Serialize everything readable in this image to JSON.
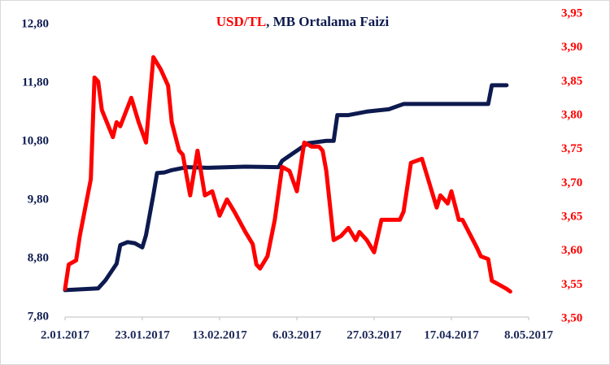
{
  "chart_data": {
    "type": "line",
    "title": [
      "USD/TL",
      ", MB Ortalama Faizi"
    ],
    "title_colors": [
      "#ff0000",
      "#0d1a4f"
    ],
    "xlim": [
      "2.01.2017",
      "8.05.2017"
    ],
    "xticks": [
      "2.01.2017",
      "23.01.2017",
      "13.02.2017",
      "6.03.2017",
      "27.03.2017",
      "17.04.2017",
      "8.05.2017"
    ],
    "ylim": [
      7.8,
      12.8
    ],
    "yticks": [
      {
        "value": 7.8,
        "label": "7,80"
      },
      {
        "value": 8.8,
        "label": "8,80"
      },
      {
        "value": 9.8,
        "label": "9,80"
      },
      {
        "value": 10.8,
        "label": "10,80"
      },
      {
        "value": 11.8,
        "label": "11,80"
      },
      {
        "value": 12.8,
        "label": "12,80"
      }
    ],
    "y2lim": [
      3.5,
      3.95
    ],
    "y2ticks": [
      {
        "value": 3.5,
        "label": "3,50"
      },
      {
        "value": 3.55,
        "label": "3,55"
      },
      {
        "value": 3.6,
        "label": "3,60"
      },
      {
        "value": 3.65,
        "label": "3,65"
      },
      {
        "value": 3.7,
        "label": "3,70"
      },
      {
        "value": 3.75,
        "label": "3,75"
      },
      {
        "value": 3.8,
        "label": "3,80"
      },
      {
        "value": 3.85,
        "label": "3,85"
      },
      {
        "value": 3.9,
        "label": "3,90"
      },
      {
        "value": 3.95,
        "label": "3,95"
      }
    ],
    "grid": false,
    "series": [
      {
        "name": "MB Ortalama Faizi",
        "color": "#0d1a4f",
        "axis": "y",
        "x": [
          "2.01.2017",
          "11.01.2017",
          "13.01.2017",
          "16.01.2017",
          "17.01.2017",
          "19.01.2017",
          "21.01.2017",
          "23.01.2017",
          "24.01.2017",
          "26.01.2017",
          "27.01.2017",
          "29.01.2017",
          "31.01.2017",
          "4.02.2017",
          "10.02.2017",
          "20.02.2017",
          "1.03.2017",
          "2.03.2017",
          "5.03.2017",
          "9.03.2017",
          "14.03.2017",
          "16.03.2017",
          "17.03.2017",
          "20.03.2017",
          "25.03.2017",
          "31.03.2017",
          "4.04.2017",
          "18.04.2017",
          "27.04.2017",
          "28.04.2017",
          "2.05.2017"
        ],
        "values": [
          8.26,
          8.29,
          8.43,
          8.71,
          9.03,
          9.08,
          9.06,
          8.99,
          9.2,
          9.89,
          10.26,
          10.27,
          10.31,
          10.36,
          10.35,
          10.37,
          10.36,
          10.47,
          10.6,
          10.77,
          10.81,
          10.81,
          11.25,
          11.25,
          11.31,
          11.35,
          11.44,
          11.44,
          11.44,
          11.76,
          11.76
        ]
      },
      {
        "name": "USD/TL",
        "color": "#ff0000",
        "axis": "y2",
        "x": [
          "2.01.2017",
          "3.01.2017",
          "5.01.2017",
          "6.01.2017",
          "9.01.2017",
          "10.01.2017",
          "11.01.2017",
          "12.01.2017",
          "15.01.2017",
          "16.01.2017",
          "17.01.2017",
          "20.01.2017",
          "22.01.2017",
          "24.01.2017",
          "26.01.2017",
          "28.01.2017",
          "30.01.2017",
          "31.01.2017",
          "2.02.2017",
          "3.02.2017",
          "5.02.2017",
          "7.02.2017",
          "9.02.2017",
          "11.02.2017",
          "13.02.2017",
          "15.02.2017",
          "17.02.2017",
          "20.02.2017",
          "22.02.2017",
          "23.02.2017",
          "24.02.2017",
          "26.02.2017",
          "28.02.2017",
          "2.03.2017",
          "4.03.2017",
          "6.03.2017",
          "8.03.2017",
          "10.03.2017",
          "12.03.2017",
          "13.03.2017",
          "14.03.2017",
          "16.03.2017",
          "18.03.2017",
          "20.03.2017",
          "22.03.2017",
          "23.03.2017",
          "25.03.2017",
          "27.03.2017",
          "29.03.2017",
          "30.03.2017",
          "3.04.2017",
          "4.04.2017",
          "6.04.2017",
          "9.04.2017",
          "11.04.2017",
          "13.04.2017",
          "14.04.2017",
          "16.04.2017",
          "17.04.2017",
          "19.04.2017",
          "20.04.2017",
          "24.04.2017",
          "25.04.2017",
          "27.04.2017",
          "28.04.2017",
          "2.05.2017",
          "3.05.2017"
        ],
        "values": [
          3.544,
          3.58,
          3.586,
          3.622,
          3.706,
          3.856,
          3.85,
          3.808,
          3.768,
          3.79,
          3.784,
          3.826,
          3.79,
          3.76,
          3.886,
          3.868,
          3.844,
          3.79,
          3.748,
          3.742,
          3.682,
          3.748,
          3.682,
          3.688,
          3.652,
          3.676,
          3.658,
          3.628,
          3.61,
          3.58,
          3.574,
          3.592,
          3.646,
          3.724,
          3.718,
          3.688,
          3.76,
          3.754,
          3.754,
          3.748,
          3.718,
          3.616,
          3.622,
          3.634,
          3.616,
          3.628,
          3.616,
          3.598,
          3.646,
          3.646,
          3.646,
          3.658,
          3.73,
          3.736,
          3.7,
          3.664,
          3.682,
          3.67,
          3.688,
          3.646,
          3.646,
          3.604,
          3.592,
          3.588,
          3.556,
          3.544,
          3.54
        ]
      }
    ]
  }
}
